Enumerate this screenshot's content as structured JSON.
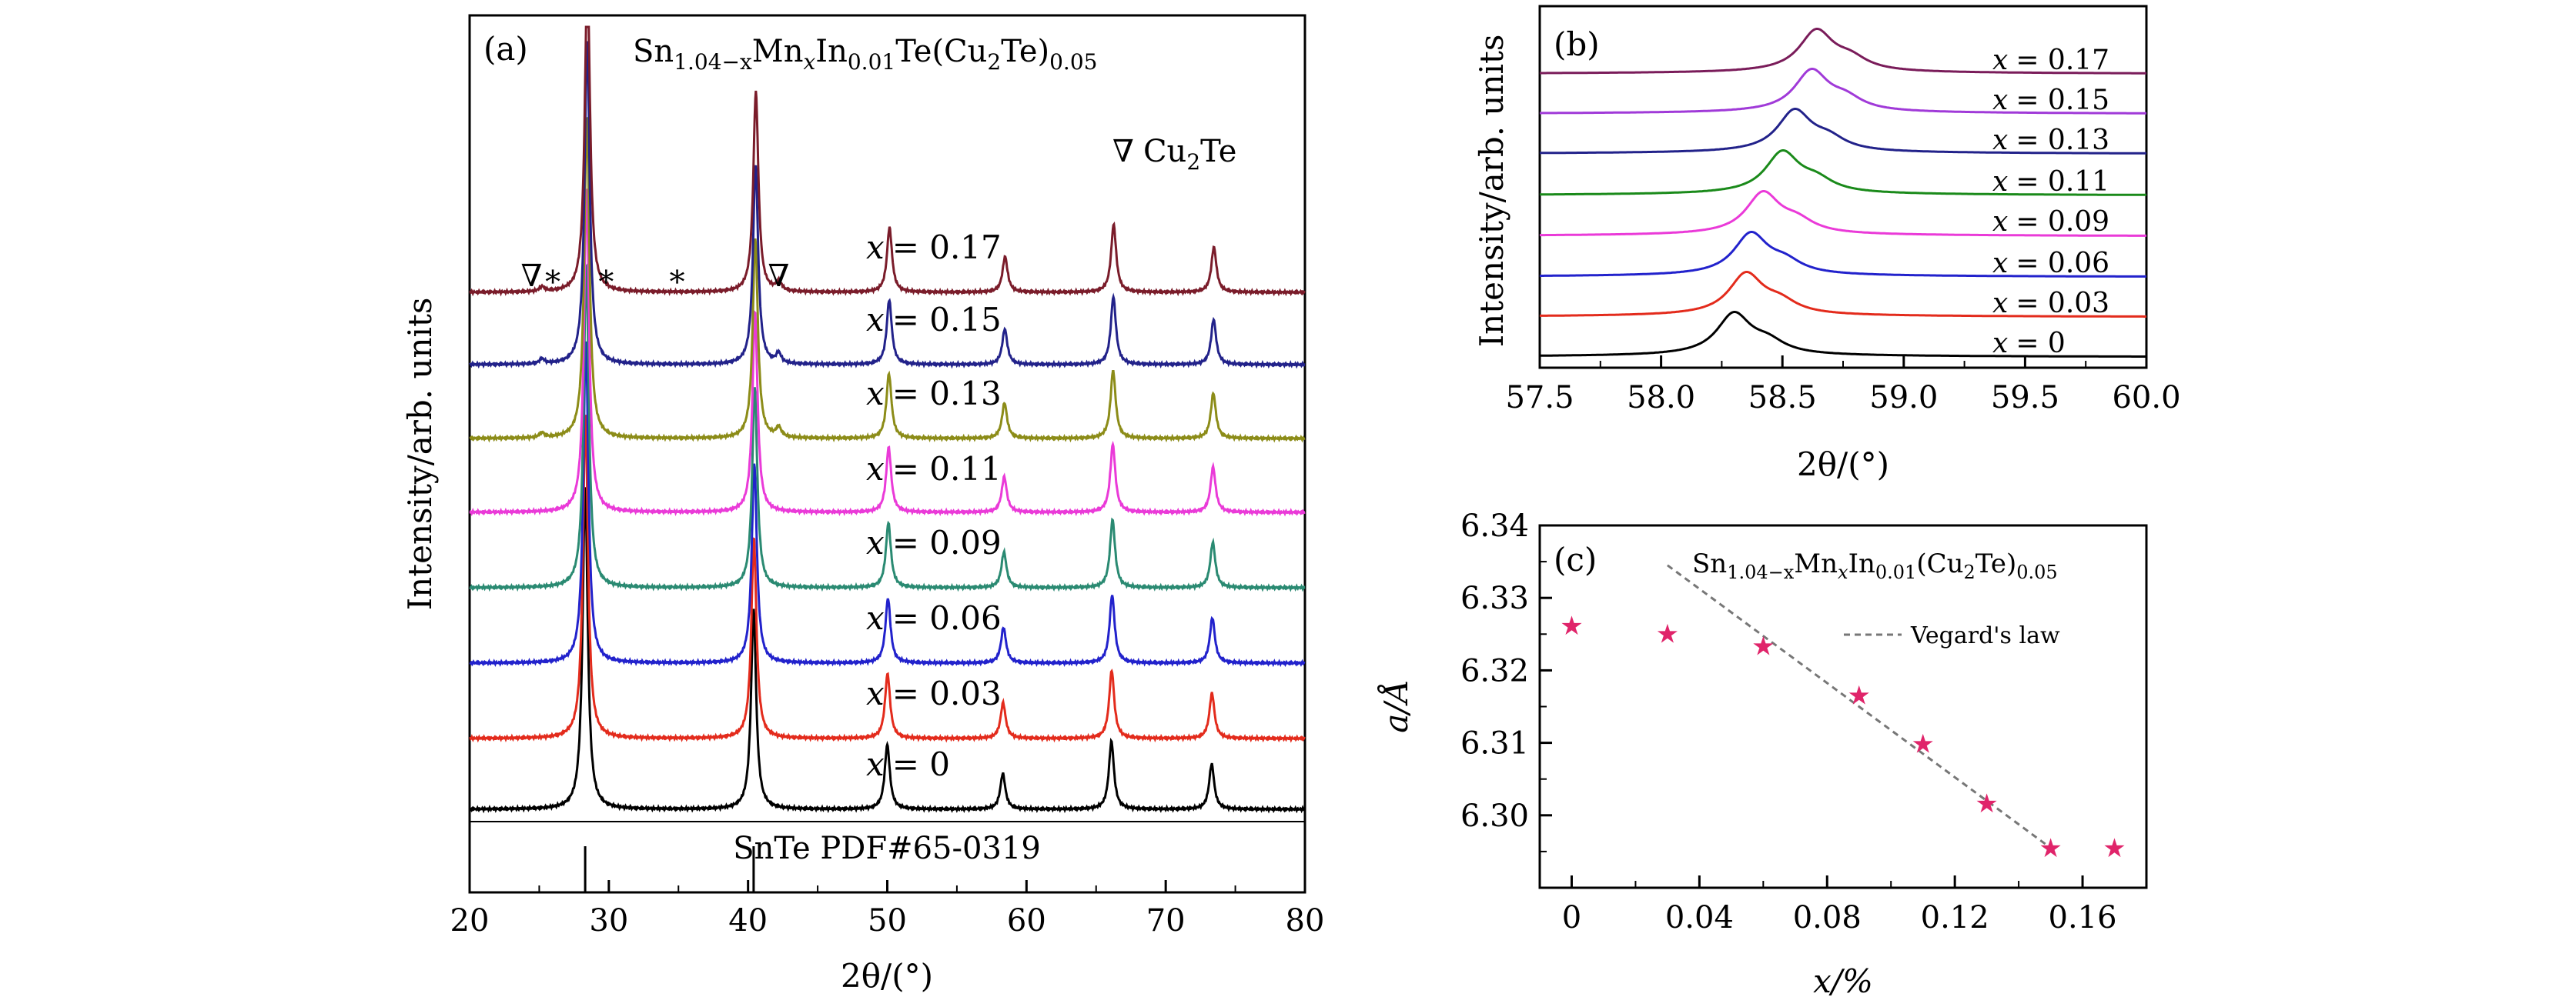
{
  "chart_data": [
    {
      "panel": "(a)",
      "type": "line",
      "title": "Sn1.04−xMnxIn0.01Te(Cu2Te)0.05",
      "title_parts": {
        "base": "Sn",
        "s1": "1.04−x",
        "mn": "Mn",
        "s2": "x",
        "in": "In",
        "s3": "0.01",
        "te": "Te(Cu",
        "s4": "2",
        "te2": "Te)",
        "s5": "0.05"
      },
      "legend_marker": {
        "symbol": "∇",
        "label": "Cu",
        "sub": "2",
        "tail": "Te"
      },
      "xlabel": "2θ/(°)",
      "ylabel": "Intensity/arb. units",
      "xlim": [
        20,
        80
      ],
      "xticks": [
        "20",
        "30",
        "40",
        "50",
        "60",
        "70",
        "80"
      ],
      "reference_label": "SnTe PDF#65-0319",
      "reference_peaks": [
        28.3,
        40.4
      ],
      "peaks": [
        28.3,
        40.4,
        50.0,
        58.3,
        66.1,
        73.3
      ],
      "peak_heights": [
        1.0,
        0.62,
        0.2,
        0.11,
        0.21,
        0.14
      ],
      "impurity_marks": [
        {
          "x": 25.2,
          "text": "∇∗"
        },
        {
          "x": 29.8,
          "text": "∗"
        },
        {
          "x": 34.9,
          "text": "∗"
        },
        {
          "x": 42.2,
          "text": "∇"
        }
      ],
      "series": [
        {
          "name": "x = 0",
          "x_label": "x",
          "value_label": "= 0",
          "color": "#000000",
          "shift": 0.0
        },
        {
          "name": "x = 0.03",
          "x_label": "x",
          "value_label": "= 0.03",
          "color": "#e32b1c",
          "shift": 0.02
        },
        {
          "name": "x = 0.06",
          "x_label": "x",
          "value_label": "= 0.06",
          "color": "#2222cc",
          "shift": 0.05
        },
        {
          "name": "x = 0.09",
          "x_label": "x",
          "value_label": "= 0.09",
          "color": "#2a8a72",
          "shift": 0.08
        },
        {
          "name": "x = 0.11",
          "x_label": "x",
          "value_label": "= 0.11",
          "color": "#ea3ad8",
          "shift": 0.1
        },
        {
          "name": "x = 0.13",
          "x_label": "x",
          "value_label": "= 0.13",
          "color": "#8c8c18",
          "shift": 0.12
        },
        {
          "name": "x = 0.15",
          "x_label": "x",
          "value_label": "= 0.15",
          "color": "#22228a",
          "shift": 0.14
        },
        {
          "name": "x = 0.17",
          "x_label": "x",
          "value_label": "= 0.17",
          "color": "#7a1c2a",
          "shift": 0.16
        }
      ]
    },
    {
      "panel": "(b)",
      "type": "line",
      "xlabel": "2θ/(°)",
      "ylabel": "Intensity/arb. units",
      "xlim": [
        57.5,
        60.0
      ],
      "xticks": [
        "57.5",
        "58.0",
        "58.5",
        "59.0",
        "59.5",
        "60.0"
      ],
      "series": [
        {
          "name": "x = 0",
          "x_label": "x",
          "value_label": "= 0",
          "color": "#000000",
          "peak": 58.3
        },
        {
          "name": "x = 0.03",
          "x_label": "x",
          "value_label": "= 0.03",
          "color": "#e32b1c",
          "peak": 58.35
        },
        {
          "name": "x = 0.06",
          "x_label": "x",
          "value_label": "= 0.06",
          "color": "#2222cc",
          "peak": 58.37
        },
        {
          "name": "x = 0.09",
          "x_label": "x",
          "value_label": "= 0.09",
          "color": "#ea3ad8",
          "peak": 58.42
        },
        {
          "name": "x = 0.11",
          "x_label": "x",
          "value_label": "= 0.11",
          "color": "#1a8a1a",
          "peak": 58.5
        },
        {
          "name": "x = 0.13",
          "x_label": "x",
          "value_label": "= 0.13",
          "color": "#22228a",
          "peak": 58.55
        },
        {
          "name": "x = 0.15",
          "x_label": "x",
          "value_label": "= 0.15",
          "color": "#a03ad8",
          "peak": 58.62
        },
        {
          "name": "x = 0.17",
          "x_label": "x",
          "value_label": "= 0.17",
          "color": "#7a1c5a",
          "peak": 58.64
        }
      ]
    },
    {
      "panel": "(c)",
      "type": "scatter",
      "title": "Sn1.04−xMnxIn0.01(Cu2Te)0.05",
      "title_parts": {
        "base": "Sn",
        "s1": "1.04−x",
        "mn": "Mn",
        "s2": "x",
        "in": "In",
        "s3": "0.01",
        "te": "(Cu",
        "s4": "2",
        "te2": "Te)",
        "s5": "0.05"
      },
      "xlabel": "x/%",
      "ylabel": "a/Å",
      "xlim": [
        -0.01,
        0.18
      ],
      "ylim": [
        6.29,
        6.34
      ],
      "xticks": [
        0,
        0.04,
        0.08,
        0.12,
        0.16
      ],
      "xtick_labels": [
        "0",
        "0.04",
        "0.08",
        "0.12",
        "0.16"
      ],
      "yticks": [
        6.3,
        6.31,
        6.32,
        6.33,
        6.34
      ],
      "ytick_labels": [
        "6.30",
        "6.31",
        "6.32",
        "6.33",
        "6.34"
      ],
      "x": [
        0,
        0.03,
        0.06,
        0.09,
        0.11,
        0.13,
        0.15,
        0.17
      ],
      "y": [
        6.3262,
        6.3251,
        6.3234,
        6.3166,
        6.3099,
        6.3017,
        6.2955,
        6.2955
      ],
      "marker_color": "#e0246a",
      "fit": {
        "name": "Vegard's law",
        "x": [
          0.03,
          0.15
        ],
        "y": [
          6.3345,
          6.2955
        ],
        "color": "#777777"
      }
    }
  ]
}
